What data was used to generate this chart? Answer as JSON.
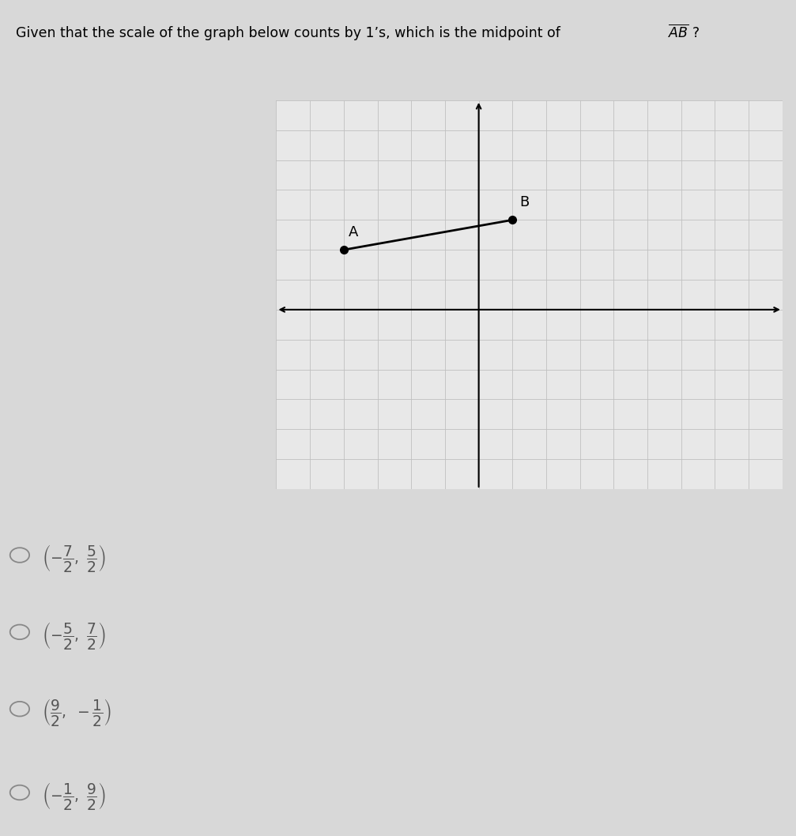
{
  "title_part1": "Given that the scale of the graph below counts by 1’s, which is the midpoint of ",
  "title_AB": "$\\overline{AB}$",
  "title_suffix": " ?",
  "point_A": [
    -4,
    2
  ],
  "point_B": [
    1,
    3
  ],
  "label_A": "A",
  "label_B": "B",
  "bg_color": "#d8d8d8",
  "graph_bg": "#e8e8e8",
  "grid_color": "#c0c0c0",
  "xlim": [
    -6,
    9
  ],
  "ylim": [
    -6,
    7
  ],
  "title_fontsize": 12.5,
  "choices_latex": [
    "$\\left(-\\dfrac{7}{2},\\ \\dfrac{5}{2}\\right)$",
    "$\\left(-\\dfrac{5}{2},\\ \\dfrac{7}{2}\\right)$",
    "$\\left(\\dfrac{9}{2},\\ -\\dfrac{1}{2}\\right)$",
    "$\\left(-\\dfrac{1}{2},\\ \\dfrac{9}{2}\\right)$"
  ]
}
